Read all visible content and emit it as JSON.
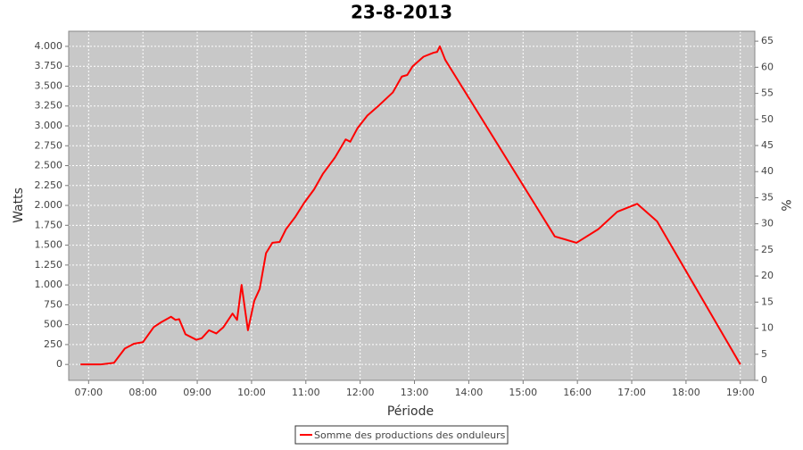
{
  "chart_data": {
    "type": "line",
    "title": "23-8-2013",
    "x_label": "Période",
    "y_label": "Watts",
    "y2_label": "%",
    "x": [
      "06:51",
      "07:13",
      "07:28",
      "07:40",
      "07:50",
      "08:00",
      "08:12",
      "08:20",
      "08:31",
      "08:36",
      "08:40",
      "08:47",
      "08:59",
      "09:05",
      "09:13",
      "09:21",
      "09:29",
      "09:39",
      "09:44",
      "09:49",
      "09:56",
      "10:03",
      "10:09",
      "10:16",
      "10:23",
      "10:31",
      "10:38",
      "10:48",
      "10:58",
      "11:09",
      "11:19",
      "11:32",
      "11:44",
      "11:49",
      "11:57",
      "12:08",
      "12:21",
      "12:36",
      "12:46",
      "12:52",
      "12:58",
      "13:10",
      "13:21",
      "13:25",
      "13:28",
      "13:34",
      "15:35",
      "15:59",
      "16:23",
      "16:44",
      "17:06",
      "17:28",
      "19:00"
    ],
    "series": [
      {
        "name": "Somme des productions des onduleurs",
        "color": "#ff0000",
        "values": [
          0,
          0,
          20,
          200,
          260,
          280,
          470,
          530,
          600,
          560,
          570,
          380,
          310,
          330,
          430,
          390,
          470,
          640,
          560,
          1000,
          430,
          800,
          950,
          1400,
          1530,
          1540,
          1700,
          1850,
          2030,
          2200,
          2400,
          2600,
          2830,
          2800,
          2970,
          3130,
          3260,
          3420,
          3620,
          3640,
          3750,
          3870,
          3920,
          3930,
          4000,
          3830,
          1610,
          1530,
          1700,
          1920,
          2020,
          1800,
          0
        ]
      }
    ],
    "xlim": [
      "06:38",
      "19:16"
    ],
    "xticks": [
      "07:00",
      "08:00",
      "09:00",
      "10:00",
      "11:00",
      "12:00",
      "13:00",
      "14:00",
      "15:00",
      "16:00",
      "17:00",
      "18:00",
      "19:00"
    ],
    "ylim": [
      -200,
      4190
    ],
    "yticks": [
      0,
      250,
      500,
      750,
      {
        "value": 1000,
        "label": "1.000"
      },
      {
        "value": 1250,
        "label": "1.250"
      },
      {
        "value": 1500,
        "label": "1.500"
      },
      {
        "value": 1750,
        "label": "1.750"
      },
      {
        "value": 2000,
        "label": "2.000"
      },
      {
        "value": 2250,
        "label": "2.250"
      },
      {
        "value": 2500,
        "label": "2.500"
      },
      {
        "value": 2750,
        "label": "2.750"
      },
      {
        "value": 3000,
        "label": "3.000"
      },
      {
        "value": 3250,
        "label": "3.250"
      },
      {
        "value": 3500,
        "label": "3.500"
      },
      {
        "value": 3750,
        "label": "3.750"
      },
      {
        "value": 4000,
        "label": "4.000"
      }
    ],
    "y2lim": [
      0,
      66.9
    ],
    "y2ticks": [
      0,
      5,
      10,
      15,
      20,
      25,
      30,
      35,
      40,
      45,
      50,
      55,
      60,
      65
    ],
    "grid": true,
    "legend": "bottom"
  }
}
